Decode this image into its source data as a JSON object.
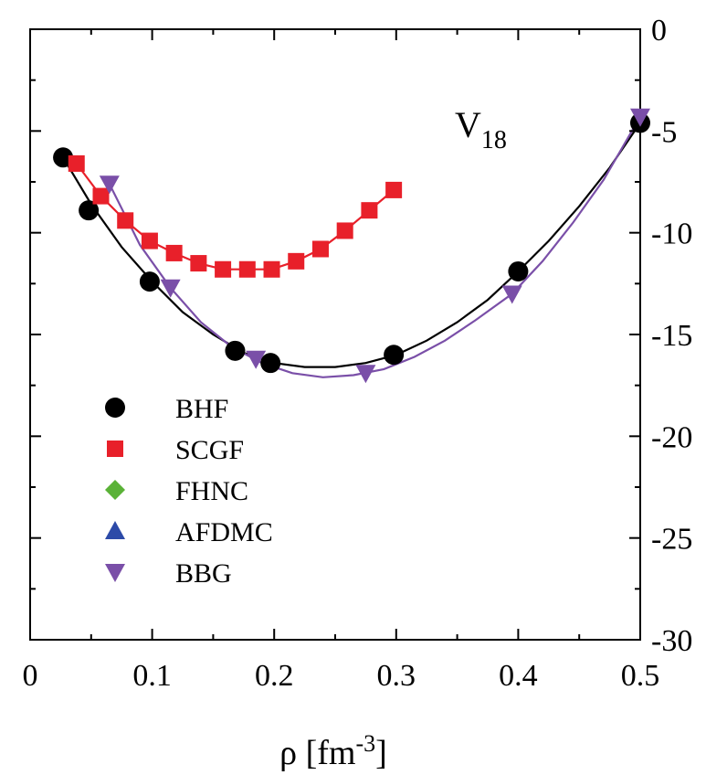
{
  "chart_data": {
    "type": "line",
    "xlabel": {
      "main": "ρ [fm",
      "sup": "-3",
      "tail": "]"
    },
    "ylabel": "",
    "xlim": [
      0,
      0.5
    ],
    "ylim": [
      -30,
      0
    ],
    "x_ticks": [
      0,
      0.1,
      0.2,
      0.3,
      0.4,
      0.5
    ],
    "x_tick_labels": [
      "0",
      "0.1",
      "0.2",
      "0.3",
      "0.4",
      "0.5"
    ],
    "y_ticks": [
      0,
      -5,
      -10,
      -15,
      -20,
      -25,
      -30
    ],
    "y_tick_labels": [
      "0",
      "-5",
      "-10",
      "-15",
      "-20",
      "-25",
      "-30"
    ],
    "y_axis_side": "right",
    "annotation": {
      "main": "V",
      "sub": "18"
    },
    "legend_position": "bottom-left",
    "series": [
      {
        "name": "BHF",
        "color": "#000000",
        "marker": "circle",
        "points": [
          [
            0.027,
            -6.3
          ],
          [
            0.048,
            -8.9
          ],
          [
            0.098,
            -12.4
          ],
          [
            0.168,
            -15.8
          ],
          [
            0.197,
            -16.4
          ],
          [
            0.298,
            -16.0
          ],
          [
            0.4,
            -11.9
          ],
          [
            0.5,
            -4.6
          ]
        ],
        "curve": [
          [
            0.027,
            -6.3
          ],
          [
            0.05,
            -8.6
          ],
          [
            0.075,
            -10.7
          ],
          [
            0.1,
            -12.4
          ],
          [
            0.125,
            -13.9
          ],
          [
            0.15,
            -15.0
          ],
          [
            0.175,
            -15.9
          ],
          [
            0.2,
            -16.4
          ],
          [
            0.225,
            -16.6
          ],
          [
            0.25,
            -16.6
          ],
          [
            0.275,
            -16.4
          ],
          [
            0.3,
            -16.0
          ],
          [
            0.325,
            -15.3
          ],
          [
            0.35,
            -14.4
          ],
          [
            0.375,
            -13.3
          ],
          [
            0.4,
            -11.9
          ],
          [
            0.425,
            -10.4
          ],
          [
            0.45,
            -8.7
          ],
          [
            0.475,
            -6.8
          ],
          [
            0.5,
            -4.6
          ]
        ]
      },
      {
        "name": "SCGF",
        "color": "#e8202a",
        "marker": "square",
        "points": [
          [
            0.038,
            -6.6
          ],
          [
            0.058,
            -8.2
          ],
          [
            0.078,
            -9.4
          ],
          [
            0.098,
            -10.4
          ],
          [
            0.118,
            -11.0
          ],
          [
            0.138,
            -11.5
          ],
          [
            0.158,
            -11.8
          ],
          [
            0.178,
            -11.8
          ],
          [
            0.198,
            -11.8
          ],
          [
            0.218,
            -11.4
          ],
          [
            0.238,
            -10.8
          ],
          [
            0.258,
            -9.9
          ],
          [
            0.278,
            -8.9
          ],
          [
            0.298,
            -7.9
          ]
        ],
        "curve": []
      },
      {
        "name": "FHNC",
        "color": "#5ab237",
        "marker": "diamond",
        "points": [],
        "curve": []
      },
      {
        "name": "AFDMC",
        "color": "#2c4aa8",
        "marker": "triangle-up",
        "points": [],
        "curve": []
      },
      {
        "name": "BBG",
        "color": "#7a4fa8",
        "marker": "triangle-down",
        "points": [
          [
            0.065,
            -7.6
          ],
          [
            0.115,
            -12.7
          ],
          [
            0.185,
            -16.2
          ],
          [
            0.275,
            -16.9
          ],
          [
            0.395,
            -13.0
          ],
          [
            0.5,
            -4.3
          ]
        ],
        "curve": [
          [
            0.065,
            -7.6
          ],
          [
            0.09,
            -10.6
          ],
          [
            0.115,
            -12.7
          ],
          [
            0.14,
            -14.4
          ],
          [
            0.165,
            -15.6
          ],
          [
            0.19,
            -16.4
          ],
          [
            0.215,
            -16.9
          ],
          [
            0.24,
            -17.1
          ],
          [
            0.265,
            -17.0
          ],
          [
            0.29,
            -16.7
          ],
          [
            0.315,
            -16.1
          ],
          [
            0.34,
            -15.3
          ],
          [
            0.365,
            -14.3
          ],
          [
            0.395,
            -13.0
          ],
          [
            0.42,
            -11.4
          ],
          [
            0.445,
            -9.5
          ],
          [
            0.47,
            -7.4
          ],
          [
            0.5,
            -4.3
          ]
        ]
      }
    ]
  }
}
